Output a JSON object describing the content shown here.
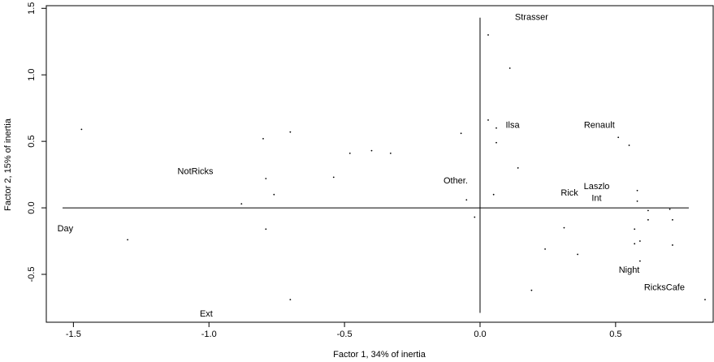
{
  "chart_data": {
    "type": "scatter",
    "xlabel": "Factor 1, 34% of inertia",
    "ylabel": "Factor 2, 15% of inertia",
    "xlim": [
      -1.6,
      0.86
    ],
    "ylim": [
      -0.86,
      1.52
    ],
    "x_ticks": [
      {
        "value": -1.5,
        "label": "-1.5"
      },
      {
        "value": -1.0,
        "label": "-1.0"
      },
      {
        "value": -0.5,
        "label": "-0.5"
      },
      {
        "value": 0.0,
        "label": "0.0"
      },
      {
        "value": 0.5,
        "label": "0.5"
      }
    ],
    "y_ticks": [
      {
        "value": -0.5,
        "label": "-0.5"
      },
      {
        "value": 0.0,
        "label": "0.0"
      },
      {
        "value": 0.5,
        "label": "0.5"
      },
      {
        "value": 1.0,
        "label": "1.0"
      },
      {
        "value": 1.5,
        "label": "1.5"
      }
    ],
    "reference_lines": {
      "horizontal": {
        "y": 0,
        "x_from": -1.54,
        "x_to": 0.77
      },
      "vertical": {
        "x": 0,
        "y_from": -0.79,
        "y_to": 1.43
      }
    },
    "points": [
      {
        "x": -1.47,
        "y": 0.59
      },
      {
        "x": -1.3,
        "y": -0.24
      },
      {
        "x": -0.88,
        "y": 0.03
      },
      {
        "x": -0.8,
        "y": 0.52
      },
      {
        "x": -0.79,
        "y": 0.22
      },
      {
        "x": -0.79,
        "y": -0.16
      },
      {
        "x": -0.7,
        "y": 0.57
      },
      {
        "x": -0.7,
        "y": -0.69
      },
      {
        "x": -0.76,
        "y": 0.1
      },
      {
        "x": -0.54,
        "y": 0.23
      },
      {
        "x": -0.48,
        "y": 0.41
      },
      {
        "x": -0.4,
        "y": 0.43
      },
      {
        "x": -0.33,
        "y": 0.41
      },
      {
        "x": -0.07,
        "y": 0.56
      },
      {
        "x": -0.05,
        "y": 0.06
      },
      {
        "x": -0.02,
        "y": -0.07
      },
      {
        "x": 0.03,
        "y": 1.3
      },
      {
        "x": 0.03,
        "y": 0.66
      },
      {
        "x": 0.06,
        "y": 0.6
      },
      {
        "x": 0.06,
        "y": 0.49
      },
      {
        "x": 0.05,
        "y": 0.1
      },
      {
        "x": 0.11,
        "y": 1.05
      },
      {
        "x": 0.14,
        "y": 0.3
      },
      {
        "x": 0.19,
        "y": -0.62
      },
      {
        "x": 0.24,
        "y": -0.31
      },
      {
        "x": 0.31,
        "y": -0.15
      },
      {
        "x": 0.36,
        "y": -0.35
      },
      {
        "x": 0.51,
        "y": 0.53
      },
      {
        "x": 0.55,
        "y": 0.47
      },
      {
        "x": 0.57,
        "y": -0.27
      },
      {
        "x": 0.57,
        "y": -0.16
      },
      {
        "x": 0.58,
        "y": 0.13
      },
      {
        "x": 0.58,
        "y": 0.05
      },
      {
        "x": 0.59,
        "y": -0.25
      },
      {
        "x": 0.59,
        "y": -0.4
      },
      {
        "x": 0.62,
        "y": -0.02
      },
      {
        "x": 0.62,
        "y": -0.09
      },
      {
        "x": 0.7,
        "y": -0.01
      },
      {
        "x": 0.71,
        "y": -0.09
      },
      {
        "x": 0.71,
        "y": -0.28
      },
      {
        "x": 0.83,
        "y": -0.69
      }
    ],
    "annotations": [
      {
        "text": "Strasser",
        "x": 0.19,
        "y": 1.43
      },
      {
        "text": "Ilsa",
        "x": 0.12,
        "y": 0.62
      },
      {
        "text": "Renault",
        "x": 0.44,
        "y": 0.62
      },
      {
        "text": "NotRicks",
        "x": -1.05,
        "y": 0.27
      },
      {
        "text": "Other.",
        "x": -0.09,
        "y": 0.2
      },
      {
        "text": "Laszlo",
        "x": 0.43,
        "y": 0.16
      },
      {
        "text": "Rick",
        "x": 0.33,
        "y": 0.11
      },
      {
        "text": "Int",
        "x": 0.43,
        "y": 0.07
      },
      {
        "text": "Day",
        "x": -1.53,
        "y": -0.16
      },
      {
        "text": "Night",
        "x": 0.55,
        "y": -0.47
      },
      {
        "text": "RicksCafe",
        "x": 0.68,
        "y": -0.6
      },
      {
        "text": "Ext",
        "x": -1.01,
        "y": -0.8
      }
    ]
  }
}
